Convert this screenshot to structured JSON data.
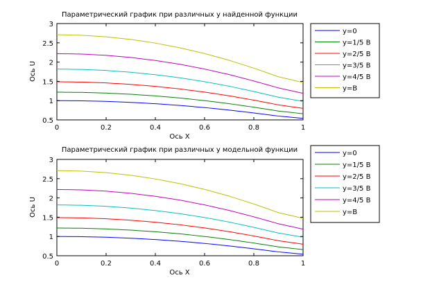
{
  "chart_data": [
    {
      "type": "line",
      "title": "Параметрический график при различных y найденной функции",
      "xlabel": "Ось X",
      "ylabel": "Ось U",
      "xlim": [
        0,
        1
      ],
      "ylim": [
        0.5,
        3
      ],
      "xticks": [
        "0",
        "0.2",
        "0.4",
        "0.6",
        "0.8",
        "1"
      ],
      "yticks": [
        "0.5",
        "1",
        "1.5",
        "2",
        "2.5",
        "3"
      ],
      "grid": false,
      "legend_position": "outside-right",
      "x": [
        0,
        0.1,
        0.2,
        0.3,
        0.4,
        0.5,
        0.6,
        0.7,
        0.8,
        0.9,
        1.0
      ],
      "series": [
        {
          "name": "y=0",
          "color": "#0000ff",
          "values": [
            1.0,
            0.995,
            0.98,
            0.955,
            0.92,
            0.875,
            0.82,
            0.755,
            0.68,
            0.6,
            0.54
          ]
        },
        {
          "name": "y=1/5 B",
          "color": "#008000",
          "values": [
            1.22,
            1.214,
            1.196,
            1.165,
            1.122,
            1.068,
            1.0,
            0.921,
            0.83,
            0.73,
            0.66
          ]
        },
        {
          "name": "y=2/5 B",
          "color": "#ff0000",
          "values": [
            1.49,
            1.482,
            1.46,
            1.422,
            1.37,
            1.304,
            1.222,
            1.125,
            1.013,
            0.89,
            0.8
          ]
        },
        {
          "name": "y=3/5 B",
          "color": "#00bfbf",
          "values": [
            1.82,
            1.81,
            1.783,
            1.737,
            1.673,
            1.592,
            1.492,
            1.374,
            1.237,
            1.09,
            0.98
          ]
        },
        {
          "name": "y=4/5 B",
          "color": "#bf00bf",
          "values": [
            2.22,
            2.209,
            2.176,
            2.12,
            2.042,
            1.943,
            1.82,
            1.676,
            1.51,
            1.33,
            1.19
          ]
        },
        {
          "name": "y=B",
          "color": "#bfbf00",
          "values": [
            2.71,
            2.696,
            2.656,
            2.588,
            2.493,
            2.371,
            2.222,
            2.046,
            1.843,
            1.62,
            1.47
          ]
        }
      ]
    },
    {
      "type": "line",
      "title": "Параметрический график при различных y модельной функции",
      "xlabel": "Ось X",
      "ylabel": "Ось U",
      "xlim": [
        0,
        1
      ],
      "ylim": [
        0.5,
        3
      ],
      "xticks": [
        "0",
        "0.2",
        "0.4",
        "0.6",
        "0.8",
        "1"
      ],
      "yticks": [
        "0.5",
        "1",
        "1.5",
        "2",
        "2.5",
        "3"
      ],
      "grid": false,
      "legend_position": "outside-right",
      "x": [
        0,
        0.1,
        0.2,
        0.3,
        0.4,
        0.5,
        0.6,
        0.7,
        0.8,
        0.9,
        1.0
      ],
      "series": [
        {
          "name": "y=0",
          "color": "#0000ff",
          "values": [
            1.0,
            0.995,
            0.98,
            0.955,
            0.92,
            0.875,
            0.82,
            0.755,
            0.68,
            0.6,
            0.54
          ]
        },
        {
          "name": "y=1/5 B",
          "color": "#008000",
          "values": [
            1.22,
            1.214,
            1.196,
            1.165,
            1.122,
            1.068,
            1.0,
            0.921,
            0.83,
            0.73,
            0.66
          ]
        },
        {
          "name": "y=2/5 B",
          "color": "#ff0000",
          "values": [
            1.49,
            1.482,
            1.46,
            1.422,
            1.37,
            1.304,
            1.222,
            1.125,
            1.013,
            0.89,
            0.8
          ]
        },
        {
          "name": "y=3/5 B",
          "color": "#00bfbf",
          "values": [
            1.82,
            1.81,
            1.783,
            1.737,
            1.673,
            1.592,
            1.492,
            1.374,
            1.237,
            1.09,
            0.98
          ]
        },
        {
          "name": "y=4/5 B",
          "color": "#bf00bf",
          "values": [
            2.22,
            2.209,
            2.176,
            2.12,
            2.042,
            1.943,
            1.82,
            1.676,
            1.51,
            1.33,
            1.19
          ]
        },
        {
          "name": "y=B",
          "color": "#bfbf00",
          "values": [
            2.71,
            2.696,
            2.656,
            2.588,
            2.493,
            2.371,
            2.222,
            2.046,
            1.843,
            1.62,
            1.47
          ]
        }
      ]
    }
  ]
}
